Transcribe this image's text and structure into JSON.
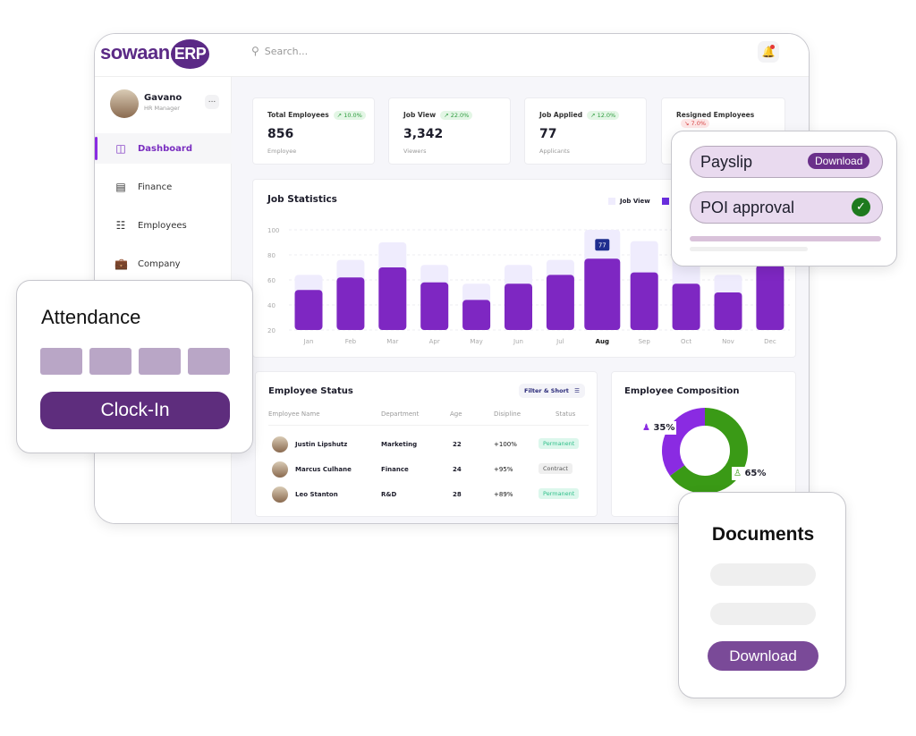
{
  "app": {
    "logo": "sowaanERP",
    "logo_main": "sowaan",
    "logo_suffix": "ERP",
    "search_placeholder": "Search..."
  },
  "user": {
    "name": "Gavano",
    "role": "HR Manager",
    "more": "..."
  },
  "sidebar": {
    "items": [
      {
        "label": "Dashboard",
        "icon": "dashboard-icon",
        "active": true
      },
      {
        "label": "Finance",
        "icon": "finance-icon"
      },
      {
        "label": "Employees",
        "icon": "employees-icon"
      },
      {
        "label": "Company",
        "icon": "briefcase-icon"
      }
    ]
  },
  "stats": [
    {
      "title": "Total Employees",
      "change": "10.0%",
      "trend": "up",
      "value": "856",
      "sub": "Employee"
    },
    {
      "title": "Job View",
      "change": "22.0%",
      "trend": "up",
      "value": "3,342",
      "sub": "Viewers"
    },
    {
      "title": "Job Applied",
      "change": "12.0%",
      "trend": "up",
      "value": "77",
      "sub": "Applicants"
    },
    {
      "title": "Resigned Employees",
      "change": "7.0%",
      "trend": "down",
      "value": "",
      "sub": ""
    }
  ],
  "chart_data": {
    "type": "bar",
    "title": "Job Statistics",
    "categories": [
      "Jan",
      "Feb",
      "Mar",
      "Apr",
      "May",
      "Jun",
      "Jul",
      "Aug",
      "Sep",
      "Oct",
      "Nov",
      "Dec"
    ],
    "highlighted": "Aug",
    "tooltip": "77",
    "series": [
      {
        "name": "Job View",
        "color": "#efecfd",
        "values": [
          64,
          76,
          90,
          72,
          57,
          72,
          76,
          100,
          91,
          80,
          64,
          90
        ]
      },
      {
        "color": "#7e27c2",
        "values": [
          52,
          62,
          70,
          58,
          44,
          57,
          64,
          77,
          66,
          57,
          50,
          72
        ]
      }
    ],
    "yticks": [
      "100",
      "80",
      "60",
      "40",
      "20"
    ],
    "ylim": [
      20,
      100
    ],
    "grid": true,
    "legend": "top-right"
  },
  "employee_status": {
    "title": "Employee Status",
    "filter_label": "Filter & Short",
    "columns": [
      "Employee Name",
      "Department",
      "Age",
      "Disipline",
      "Status"
    ],
    "rows": [
      {
        "name": "Justin Lipshutz",
        "department": "Marketing",
        "age": "22",
        "discipline": "+100%",
        "status": "Permanent"
      },
      {
        "name": "Marcus Culhane",
        "department": "Finance",
        "age": "24",
        "discipline": "+95%",
        "status": "Contract"
      },
      {
        "name": "Leo Stanton",
        "department": "R&D",
        "age": "28",
        "discipline": "+89%",
        "status": "Permanent"
      }
    ]
  },
  "composition": {
    "title": "Employee Composition",
    "female": "35%",
    "male": "65%",
    "female_value": 35,
    "male_value": 65,
    "female_color": "#8a2be2",
    "male_color": "#3a9a16"
  },
  "attendance": {
    "title": "Attendance",
    "button": "Clock-In"
  },
  "payslip_card": {
    "payslip": "Payslip",
    "download": "Download",
    "poi": "POI approval",
    "poi_status": "approved"
  },
  "documents": {
    "title": "Documents",
    "button": "Download"
  },
  "colors": {
    "brand": "#5b2a86",
    "accent": "#7e27c2"
  }
}
